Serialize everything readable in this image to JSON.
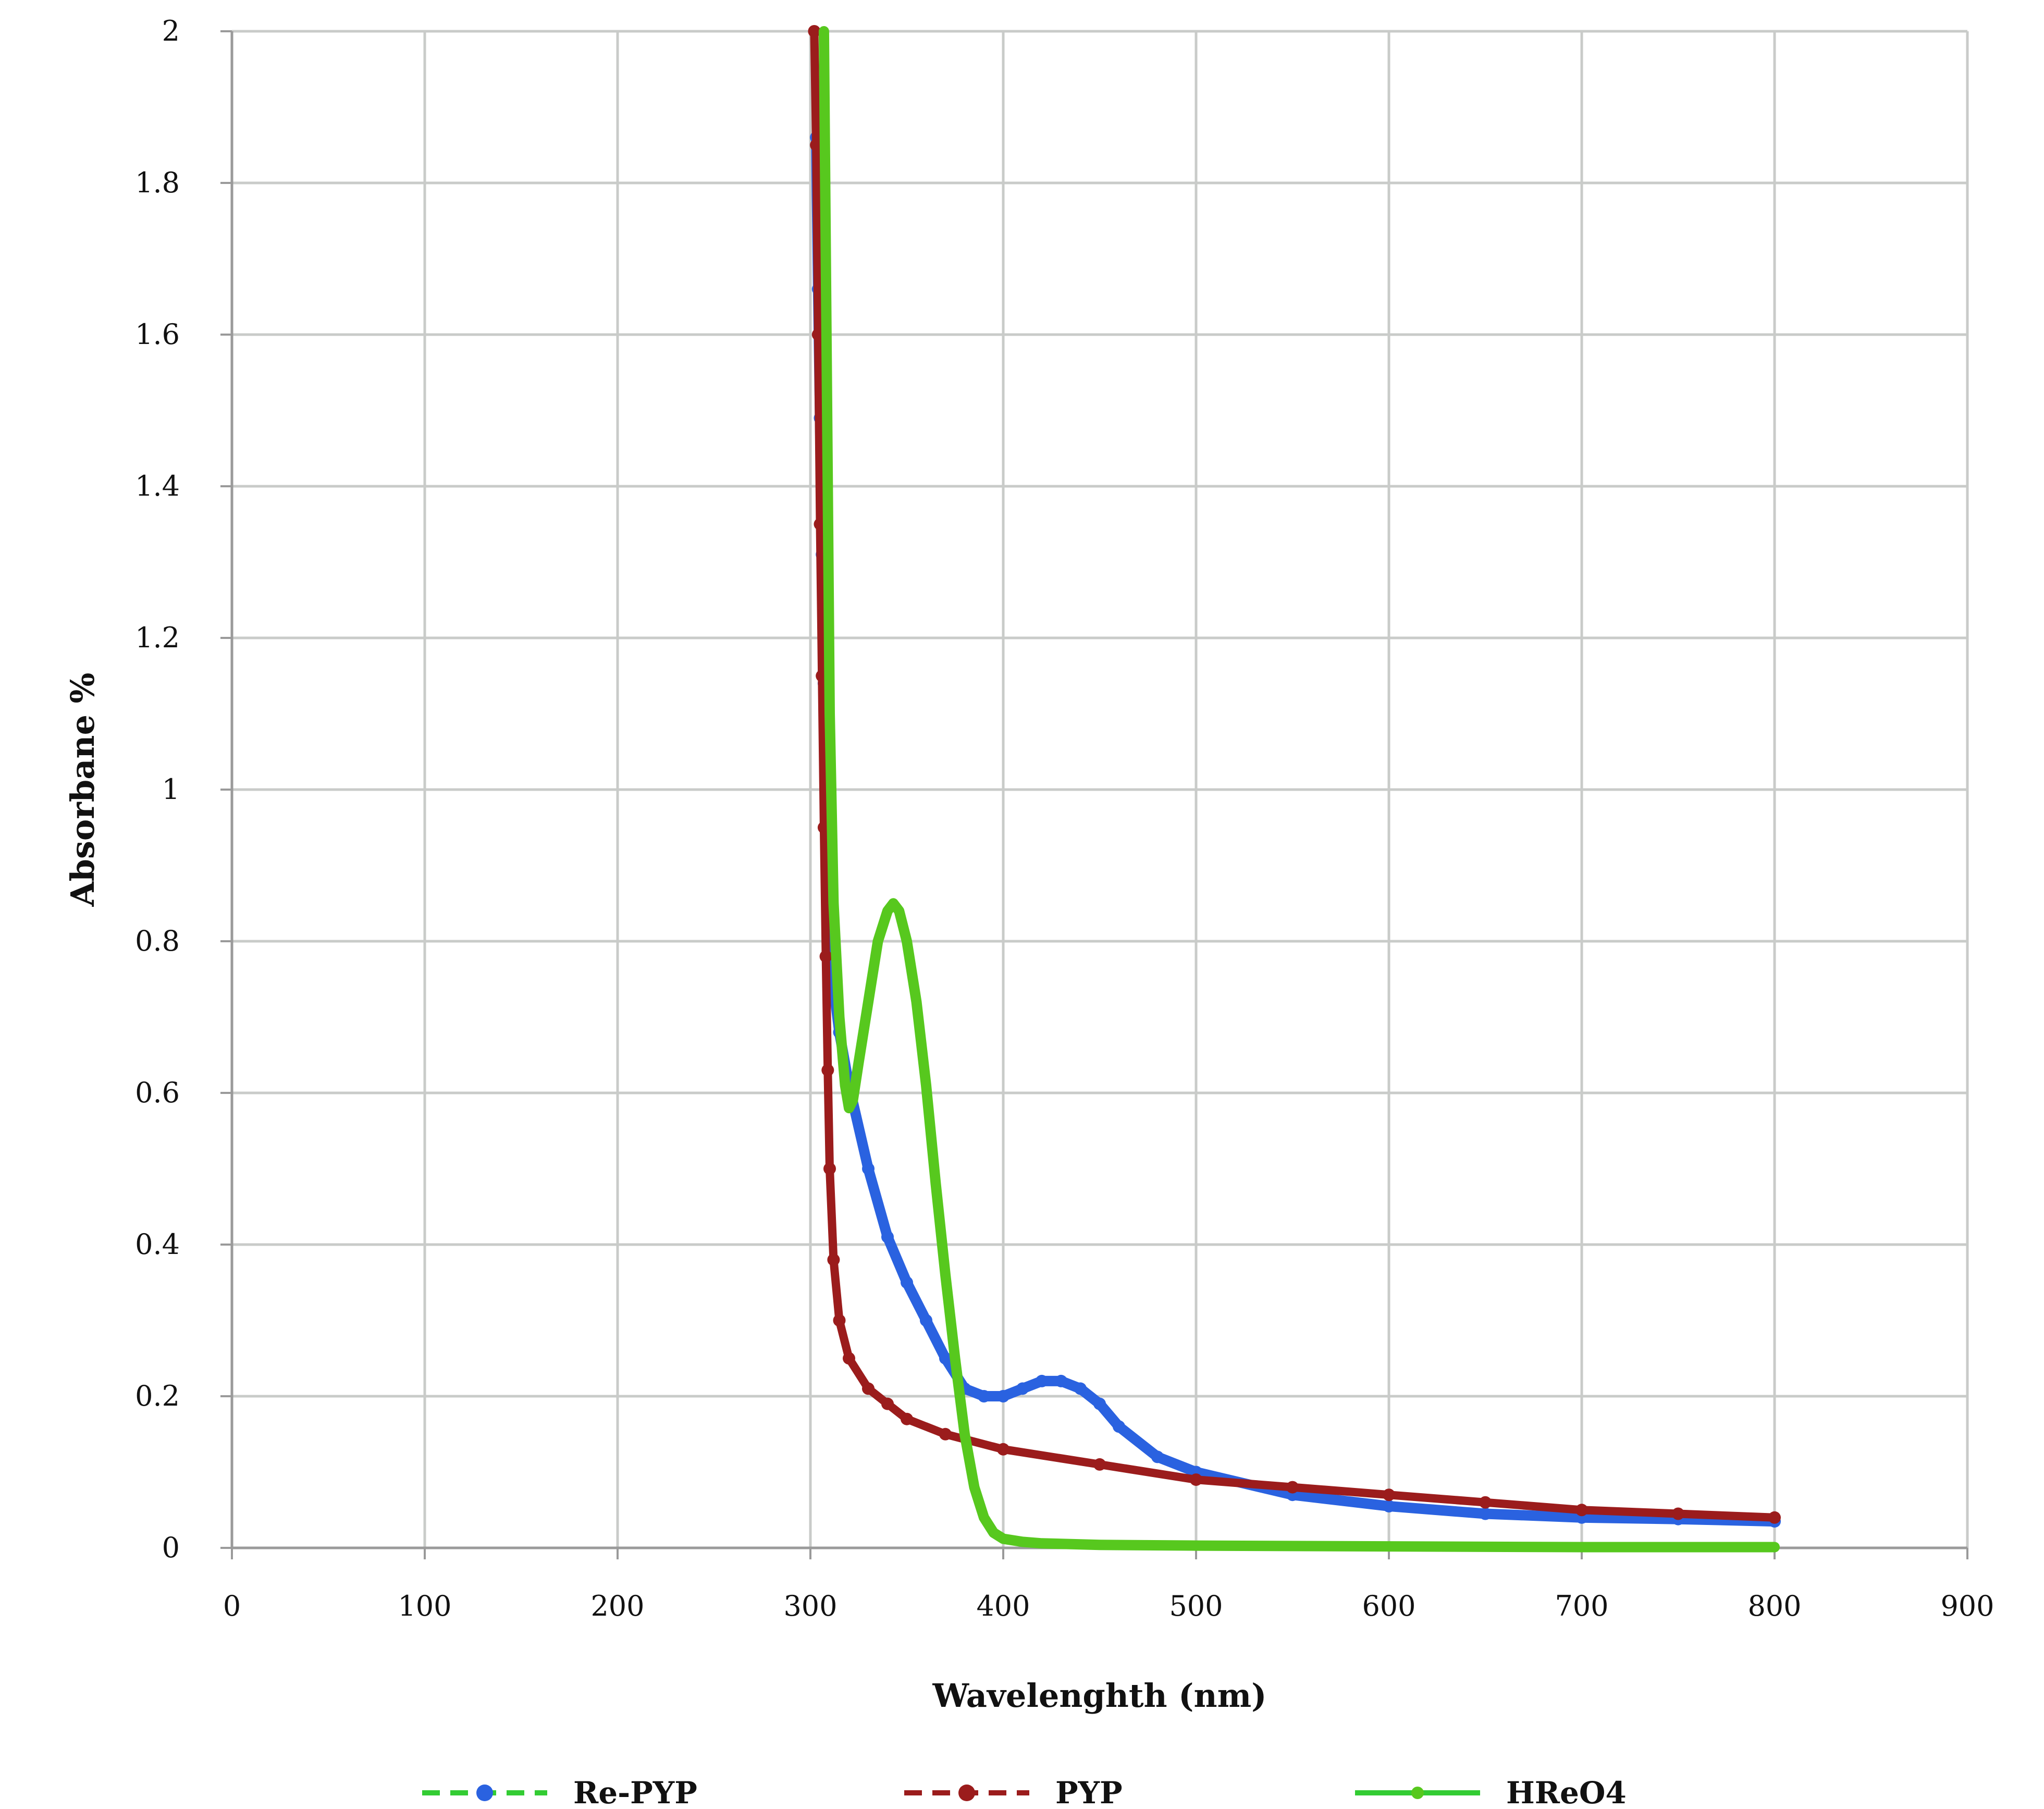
{
  "chart_data": {
    "type": "line",
    "title": "",
    "xlabel": "Wavelenghth (nm)",
    "ylabel": "Absorbane %",
    "xlim": [
      0,
      900
    ],
    "ylim": [
      0,
      2
    ],
    "x_ticks": [
      "0",
      "100",
      "200",
      "300",
      "400",
      "500",
      "600",
      "700",
      "800",
      "900"
    ],
    "y_ticks": [
      "0",
      "0.2",
      "0.4",
      "0.6",
      "0.8",
      "1",
      "1.2",
      "1.4",
      "1.6",
      "1.8",
      "2"
    ],
    "grid": true,
    "legend_position": "bottom",
    "series": [
      {
        "name": "Re-PYP",
        "color": "#2a62e0",
        "legend_line_color": "#33cc33",
        "legend_line_style": "dashed",
        "x": [
          303,
          304,
          305,
          306,
          307,
          308,
          309,
          310,
          312,
          315,
          320,
          330,
          340,
          350,
          360,
          370,
          380,
          390,
          400,
          410,
          420,
          430,
          440,
          450,
          460,
          480,
          500,
          550,
          600,
          650,
          700,
          750,
          800
        ],
        "y": [
          1.86,
          1.66,
          1.49,
          1.31,
          1.14,
          1.0,
          0.9,
          0.82,
          0.74,
          0.68,
          0.61,
          0.5,
          0.41,
          0.35,
          0.3,
          0.25,
          0.21,
          0.2,
          0.2,
          0.21,
          0.22,
          0.22,
          0.21,
          0.19,
          0.16,
          0.12,
          0.1,
          0.07,
          0.055,
          0.045,
          0.04,
          0.038,
          0.035
        ]
      },
      {
        "name": "PYP",
        "color": "#9b1c1c",
        "legend_line_color": "#9b1c1c",
        "legend_line_style": "dashed",
        "x": [
          302,
          303,
          304,
          305,
          306,
          307,
          308,
          309,
          310,
          312,
          315,
          320,
          330,
          340,
          350,
          370,
          400,
          450,
          500,
          550,
          600,
          650,
          700,
          750,
          800
        ],
        "y": [
          2.0,
          1.85,
          1.6,
          1.35,
          1.15,
          0.95,
          0.78,
          0.63,
          0.5,
          0.38,
          0.3,
          0.25,
          0.21,
          0.19,
          0.17,
          0.15,
          0.13,
          0.11,
          0.09,
          0.08,
          0.07,
          0.06,
          0.05,
          0.045,
          0.04
        ]
      },
      {
        "name": "HReO4",
        "color": "#57c81e",
        "legend_line_color": "#33cc33",
        "legend_line_style": "solid",
        "x": [
          307,
          308,
          309,
          310,
          312,
          315,
          318,
          320,
          322,
          325,
          330,
          335,
          340,
          343,
          346,
          350,
          355,
          360,
          365,
          370,
          375,
          380,
          385,
          390,
          395,
          400,
          410,
          420,
          450,
          500,
          600,
          700,
          800
        ],
        "y": [
          2.0,
          1.7,
          1.4,
          1.1,
          0.85,
          0.7,
          0.61,
          0.58,
          0.59,
          0.64,
          0.72,
          0.8,
          0.84,
          0.85,
          0.84,
          0.8,
          0.72,
          0.61,
          0.48,
          0.36,
          0.25,
          0.15,
          0.08,
          0.04,
          0.02,
          0.012,
          0.008,
          0.006,
          0.004,
          0.003,
          0.002,
          0.001,
          0.001
        ]
      }
    ]
  }
}
